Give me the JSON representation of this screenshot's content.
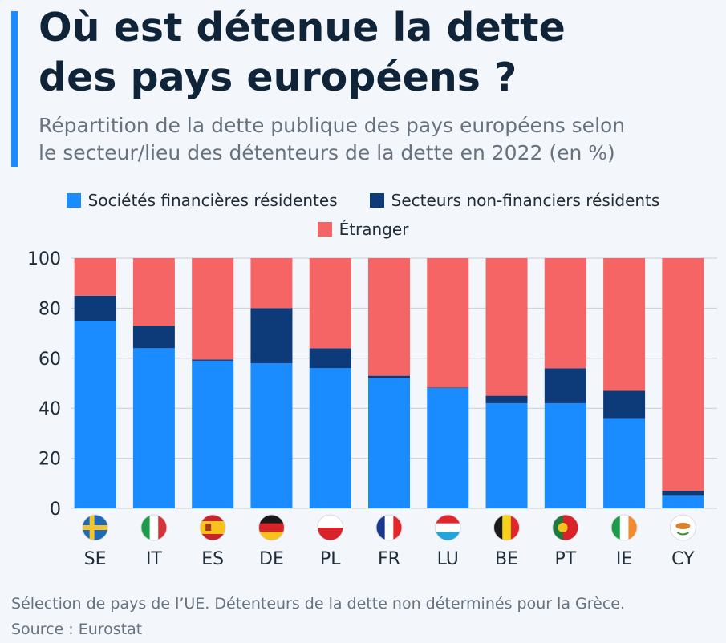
{
  "header": {
    "title_line1": "Où est détenue la dette",
    "title_line2": "des pays européens ?",
    "subtitle_line1": "Répartition de la dette publique des pays européens selon",
    "subtitle_line2": "le secteur/lieu des détenteurs de la dette en 2022 (en %)"
  },
  "footer": {
    "note": "Sélection de pays de l’UE. Détenteurs de la dette non déterminés pour la Grèce.",
    "source": "Source : Eurostat"
  },
  "colors": {
    "accent": "#1a8cff",
    "financial": "#1a8cff",
    "nonfinancial": "#0d3b7a",
    "foreign": "#f56565"
  },
  "chart_data": {
    "type": "bar",
    "stacked": true,
    "categories": [
      "SE",
      "IT",
      "ES",
      "DE",
      "PL",
      "FR",
      "LU",
      "BE",
      "PT",
      "IE",
      "CY"
    ],
    "flag_icons": [
      "flag-se-icon",
      "flag-it-icon",
      "flag-es-icon",
      "flag-de-icon",
      "flag-pl-icon",
      "flag-fr-icon",
      "flag-lu-icon",
      "flag-be-icon",
      "flag-pt-icon",
      "flag-ie-icon",
      "flag-cy-icon"
    ],
    "series": [
      {
        "name": "Sociétés financières résidentes",
        "color": "#1a8cff",
        "values": [
          75,
          64,
          59,
          58,
          56,
          52,
          48,
          42,
          42,
          36,
          5
        ]
      },
      {
        "name": "Secteurs non-financiers résidents",
        "color": "#0d3b7a",
        "values": [
          10,
          9,
          0.5,
          22,
          8,
          1,
          0.3,
          3,
          14,
          11,
          2
        ]
      },
      {
        "name": "Étranger",
        "color": "#f56565",
        "values": [
          15,
          27,
          40.5,
          20,
          36,
          47,
          51.7,
          55,
          44,
          53,
          93
        ]
      }
    ],
    "ylim": [
      0,
      100
    ],
    "yticks": [
      "0",
      "20",
      "40",
      "60",
      "80",
      "100"
    ],
    "grid": true,
    "legend_position": "top"
  }
}
